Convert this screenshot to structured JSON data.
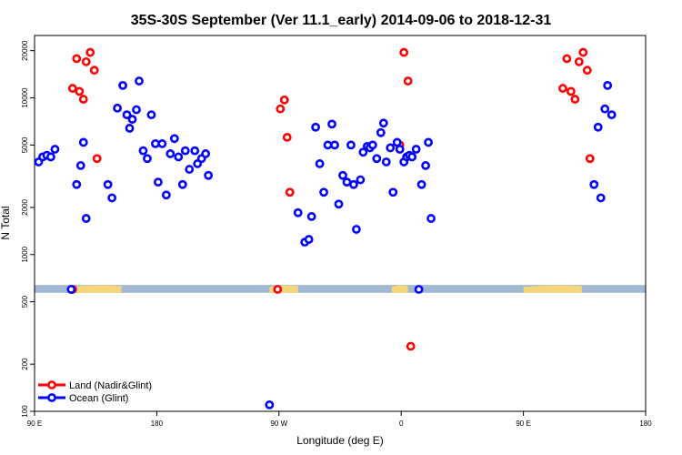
{
  "chart_data": {
    "type": "scatter",
    "title": "35S-30S September (Ver 11.1_early)   2014-09-06 to 2018-12-31",
    "xlabel": "Longitude (deg E)",
    "ylabel": "N Total",
    "x_axis": {
      "range_deg_east_unwrapped": [
        90,
        540
      ],
      "ticks": [
        {
          "value": 90,
          "label": "90 E"
        },
        {
          "value": 180,
          "label": "180"
        },
        {
          "value": 270,
          "label": "90 W"
        },
        {
          "value": 360,
          "label": "0"
        },
        {
          "value": 450,
          "label": "90 E"
        },
        {
          "value": 540,
          "label": "180"
        }
      ]
    },
    "y_axis": {
      "scale": "log",
      "ylim": [
        100,
        25000
      ],
      "ticks": [
        100,
        200,
        500,
        1000,
        2000,
        5000,
        10000,
        20000
      ],
      "tick_labels": [
        "100",
        "200",
        "500",
        "1000",
        "2000",
        "5000",
        "10000",
        "20000"
      ]
    },
    "land_band": {
      "y_range": [
        570,
        640
      ],
      "ocean_color": "#a2b9d6",
      "land_color": "#f5d77a",
      "land_segments_deg": [
        [
          116,
          154
        ],
        [
          263,
          284
        ],
        [
          353,
          365
        ],
        [
          450,
          493
        ]
      ]
    },
    "legend": {
      "placement": "bottom-left",
      "entries": [
        {
          "label": "Land (Nadir&Glint)",
          "color": "#ff0000"
        },
        {
          "label": "Ocean (Glint)",
          "color": "#0000ff"
        }
      ]
    },
    "series": [
      {
        "name": "Land (Nadir&Glint)",
        "color": "#ff0000",
        "points": [
          [
            118,
            11500
          ],
          [
            121,
            17800
          ],
          [
            123,
            11000
          ],
          [
            126,
            9800
          ],
          [
            128,
            17000
          ],
          [
            131,
            19500
          ],
          [
            134,
            15000
          ],
          [
            136,
            4100
          ],
          [
            118,
            600
          ],
          [
            269,
            600
          ],
          [
            271,
            8500
          ],
          [
            274,
            9700
          ],
          [
            276,
            5600
          ],
          [
            278,
            2500
          ],
          [
            359,
            5000
          ],
          [
            362,
            19500
          ],
          [
            365,
            12800
          ],
          [
            367,
            260
          ],
          [
            479,
            11500
          ],
          [
            482,
            17800
          ],
          [
            485,
            11000
          ],
          [
            488,
            9800
          ],
          [
            491,
            17000
          ],
          [
            494,
            19500
          ],
          [
            497,
            15000
          ],
          [
            499,
            4100
          ]
        ]
      },
      {
        "name": "Ocean (Glint)",
        "color": "#0000ff",
        "points": [
          [
            93,
            3900
          ],
          [
            96,
            4200
          ],
          [
            99,
            4300
          ],
          [
            102,
            4200
          ],
          [
            105,
            4700
          ],
          [
            117,
            600
          ],
          [
            121,
            2800
          ],
          [
            124,
            3700
          ],
          [
            126,
            5200
          ],
          [
            128,
            1700
          ],
          [
            144,
            2800
          ],
          [
            147,
            2300
          ],
          [
            151,
            8600
          ],
          [
            155,
            12000
          ],
          [
            158,
            7800
          ],
          [
            160,
            6400
          ],
          [
            162,
            7300
          ],
          [
            165,
            8400
          ],
          [
            167,
            12800
          ],
          [
            170,
            4600
          ],
          [
            173,
            4100
          ],
          [
            176,
            7800
          ],
          [
            179,
            5100
          ],
          [
            181,
            2900
          ],
          [
            184,
            5100
          ],
          [
            187,
            2400
          ],
          [
            190,
            4400
          ],
          [
            193,
            5500
          ],
          [
            196,
            4200
          ],
          [
            199,
            2800
          ],
          [
            201,
            4600
          ],
          [
            204,
            3500
          ],
          [
            208,
            4600
          ],
          [
            210,
            3800
          ],
          [
            213,
            4100
          ],
          [
            216,
            4400
          ],
          [
            218,
            3200
          ],
          [
            263,
            110
          ],
          [
            284,
            1850
          ],
          [
            289,
            1200
          ],
          [
            292,
            1250
          ],
          [
            294,
            1750
          ],
          [
            297,
            6500
          ],
          [
            300,
            3800
          ],
          [
            303,
            2500
          ],
          [
            306,
            5000
          ],
          [
            309,
            6800
          ],
          [
            311,
            5000
          ],
          [
            314,
            2100
          ],
          [
            317,
            3200
          ],
          [
            320,
            2900
          ],
          [
            323,
            5000
          ],
          [
            325,
            2800
          ],
          [
            327,
            1450
          ],
          [
            330,
            3000
          ],
          [
            332,
            4500
          ],
          [
            335,
            4900
          ],
          [
            337,
            4800
          ],
          [
            339,
            5000
          ],
          [
            342,
            4100
          ],
          [
            345,
            6000
          ],
          [
            347,
            6900
          ],
          [
            349,
            3900
          ],
          [
            352,
            4800
          ],
          [
            354,
            2500
          ],
          [
            357,
            5200
          ],
          [
            359,
            4700
          ],
          [
            362,
            3900
          ],
          [
            364,
            4200
          ],
          [
            366,
            4300
          ],
          [
            368,
            4200
          ],
          [
            371,
            4700
          ],
          [
            373,
            600
          ],
          [
            375,
            2800
          ],
          [
            378,
            3700
          ],
          [
            380,
            5200
          ],
          [
            382,
            1700
          ],
          [
            502,
            2800
          ],
          [
            505,
            6500
          ],
          [
            507,
            2300
          ],
          [
            510,
            8500
          ],
          [
            512,
            12000
          ],
          [
            515,
            7800
          ]
        ]
      }
    ]
  }
}
